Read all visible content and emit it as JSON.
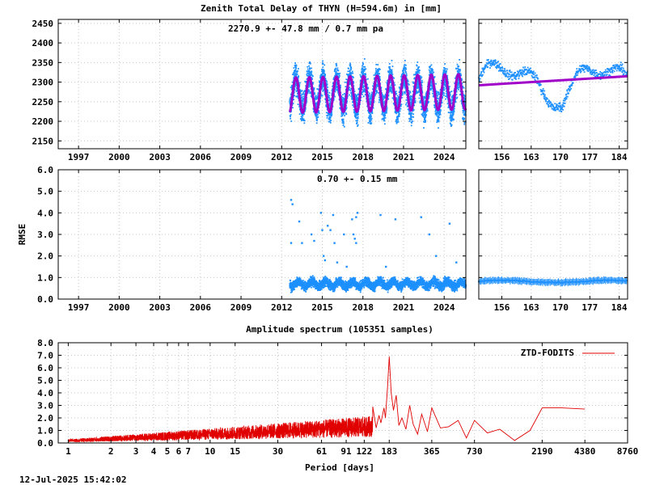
{
  "chart_data": [
    {
      "id": "ztd",
      "type": "scatter",
      "title": "Zenith Total Delay of THYN (H=594.6m) in [mm]",
      "annotation": "2270.9 +-  47.8 mm /  0.7 mm pa",
      "xlim": [
        1995.5,
        2025.6
      ],
      "ylim": [
        2130,
        2460
      ],
      "x_ticks": [
        "1997",
        "2000",
        "2003",
        "2006",
        "2009",
        "2012",
        "2015",
        "2018",
        "2021",
        "2024"
      ],
      "x_tick_values": [
        1997,
        2000,
        2003,
        2006,
        2009,
        2012,
        2015,
        2018,
        2021,
        2024
      ],
      "y_ticks": [
        "2150",
        "2200",
        "2250",
        "2300",
        "2350",
        "2400",
        "2450"
      ],
      "y_tick_values": [
        2150,
        2200,
        2250,
        2300,
        2350,
        2400,
        2450
      ],
      "grid": true,
      "series": [
        {
          "kind": "points",
          "color": "#1e90ff",
          "x_range": [
            2012.6,
            2025.6
          ],
          "mean": 2270.9,
          "seasonal_amplitude": 40,
          "noise": 45
        },
        {
          "kind": "model",
          "color": "#a000c8",
          "x_range": [
            2012.6,
            2025.6
          ],
          "mean": 2270.9,
          "seasonal_amplitude": 45,
          "trend_mm_per_year": 0.7
        }
      ]
    },
    {
      "id": "ztd-recent",
      "type": "scatter",
      "xlim": [
        150.5,
        186
      ],
      "ylim": [
        2130,
        2460
      ],
      "x_ticks": [
        "156",
        "163",
        "170",
        "177",
        "184"
      ],
      "x_tick_values": [
        156,
        163,
        170,
        177,
        184
      ],
      "grid": true,
      "series": [
        {
          "kind": "points",
          "color": "#1e90ff"
        },
        {
          "kind": "trend",
          "color": "#a000c8",
          "y_start": 2292,
          "y_end": 2315
        }
      ]
    },
    {
      "id": "rmse",
      "type": "scatter",
      "ylabel": "RMSE",
      "annotation": "0.70 +-  0.15 mm",
      "xlim": [
        1995.5,
        2025.6
      ],
      "ylim": [
        0,
        6
      ],
      "x_ticks": [
        "1997",
        "2000",
        "2003",
        "2006",
        "2009",
        "2012",
        "2015",
        "2018",
        "2021",
        "2024"
      ],
      "x_tick_values": [
        1997,
        2000,
        2003,
        2006,
        2009,
        2012,
        2015,
        2018,
        2021,
        2024
      ],
      "y_ticks": [
        "0.0",
        "1.0",
        "2.0",
        "3.0",
        "4.0",
        "5.0",
        "6.0"
      ],
      "y_tick_values": [
        0,
        1,
        2,
        3,
        4,
        5,
        6
      ],
      "grid": true,
      "series": [
        {
          "kind": "points",
          "color": "#1e90ff",
          "x_range": [
            2012.6,
            2025.6
          ],
          "mean": 0.7,
          "spread": 0.15
        }
      ]
    },
    {
      "id": "rmse-recent",
      "type": "scatter",
      "xlim": [
        150.5,
        186
      ],
      "ylim": [
        0,
        6
      ],
      "x_ticks": [
        "156",
        "163",
        "170",
        "177",
        "184"
      ],
      "x_tick_values": [
        156,
        163,
        170,
        177,
        184
      ],
      "grid": true,
      "series": [
        {
          "kind": "points-with-errorbars",
          "color": "#1e90ff",
          "mean": 0.82
        }
      ]
    },
    {
      "id": "spectrum",
      "type": "line",
      "title": "Amplitude spectrum (105351 samples)",
      "xlabel": "Period [days]",
      "log_x": true,
      "xlim": [
        0.85,
        8760
      ],
      "ylim": [
        0,
        8
      ],
      "x_ticks": [
        "1",
        "2",
        "3",
        "4",
        "5",
        "6",
        "7",
        "10",
        "15",
        "30",
        "61",
        "91",
        "122",
        "183",
        "365",
        "730",
        "2190",
        "4380",
        "8760"
      ],
      "x_tick_values": [
        1,
        2,
        3,
        4,
        5,
        6,
        7,
        10,
        15,
        30,
        61,
        91,
        122,
        183,
        365,
        730,
        2190,
        4380,
        8760
      ],
      "y_ticks": [
        "0.0",
        "1.0",
        "2.0",
        "3.0",
        "4.0",
        "5.0",
        "6.0",
        "7.0",
        "8.0"
      ],
      "y_tick_values": [
        0,
        1,
        2,
        3,
        4,
        5,
        6,
        7,
        8
      ],
      "grid": true,
      "legend": "top-right",
      "series": [
        {
          "name": "ZTD-FODITS",
          "color": "#e00000",
          "peaks": [
            {
              "period": 183,
              "amplitude": 6.9
            },
            {
              "period": 140,
              "amplitude": 2.9
            },
            {
              "period": 365,
              "amplitude": 2.8
            },
            {
              "period": 730,
              "amplitude": 1.8
            },
            {
              "period": 2190,
              "amplitude": 2.8
            },
            {
              "period": 4380,
              "amplitude": 2.7
            }
          ]
        }
      ]
    }
  ],
  "footer": {
    "timestamp": "12-Jul-2025 15:42:02"
  }
}
